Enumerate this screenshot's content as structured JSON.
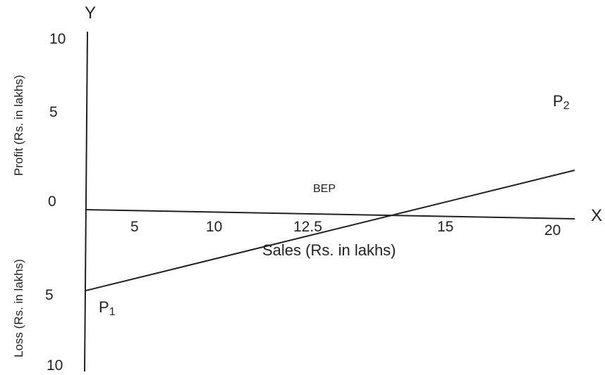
{
  "chart_data": {
    "type": "line",
    "x_axis_letter": "X",
    "y_axis_letter": "Y",
    "xlabel": "Sales (Rs. in lakhs)",
    "ylabel_upper": "Profit  (Rs. in lakhs)",
    "ylabel_lower": "Loss  (Rs. in lakhs)",
    "x_ticks": [
      "5",
      "10",
      "12.5",
      "15",
      "20"
    ],
    "y_ticks_upper": [
      "10",
      "5",
      "0"
    ],
    "y_ticks_lower": [
      "5",
      "10"
    ],
    "xlim": [
      0,
      20
    ],
    "ylim": [
      -10,
      10
    ],
    "grid": false,
    "series": [
      {
        "x": [
          0,
          12.5,
          20
        ],
        "y": [
          -5,
          0,
          3
        ]
      }
    ],
    "annotations": [
      {
        "text": "BEP",
        "x": 12.5,
        "y": 0
      },
      {
        "text": "P",
        "subscript": "1",
        "x": 0,
        "y": -5
      },
      {
        "text": "P",
        "subscript": "2",
        "x": 20,
        "y": 3
      }
    ]
  }
}
